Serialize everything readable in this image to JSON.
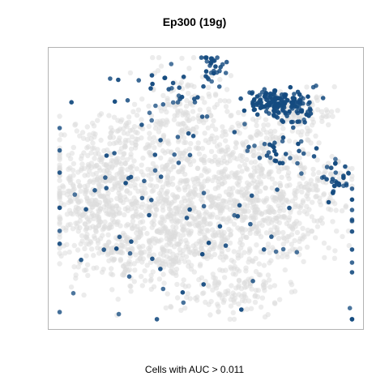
{
  "title": "Ep300 (19g)",
  "caption": "Cells with AUC > 0.011",
  "colors": {
    "background_cells": "#dcdcdc",
    "positive_cells": "#154b80",
    "panel_border": "#b3b3b3"
  },
  "chart_data": {
    "type": "scatter",
    "title": "Ep300 (19g)",
    "xlabel": "",
    "ylabel": "",
    "axes_visible": false,
    "grid": false,
    "legend": "none",
    "series": [
      {
        "name": "",
        "color": "#dcdcdc",
        "density_clusters": [
          {
            "cx": 0.18,
            "cy": 0.44,
            "sx": 0.09,
            "sy": 0.09,
            "n": 260
          },
          {
            "cx": 0.22,
            "cy": 0.6,
            "sx": 0.1,
            "sy": 0.1,
            "n": 240
          },
          {
            "cx": 0.3,
            "cy": 0.74,
            "sx": 0.12,
            "sy": 0.06,
            "n": 170
          },
          {
            "cx": 0.44,
            "cy": 0.48,
            "sx": 0.11,
            "sy": 0.11,
            "n": 300
          },
          {
            "cx": 0.5,
            "cy": 0.68,
            "sx": 0.12,
            "sy": 0.08,
            "n": 250
          },
          {
            "cx": 0.58,
            "cy": 0.87,
            "sx": 0.08,
            "sy": 0.05,
            "n": 120
          },
          {
            "cx": 0.62,
            "cy": 0.55,
            "sx": 0.12,
            "sy": 0.09,
            "n": 250
          },
          {
            "cx": 0.76,
            "cy": 0.58,
            "sx": 0.08,
            "sy": 0.1,
            "n": 160
          },
          {
            "cx": 0.45,
            "cy": 0.2,
            "sx": 0.08,
            "sy": 0.07,
            "n": 110
          },
          {
            "cx": 0.62,
            "cy": 0.33,
            "sx": 0.08,
            "sy": 0.07,
            "n": 110
          },
          {
            "cx": 0.8,
            "cy": 0.25,
            "sx": 0.06,
            "sy": 0.05,
            "n": 80
          },
          {
            "cx": 0.85,
            "cy": 0.47,
            "sx": 0.06,
            "sy": 0.06,
            "n": 70
          },
          {
            "cx": 0.3,
            "cy": 0.3,
            "sx": 0.07,
            "sy": 0.05,
            "n": 70
          },
          {
            "cx": 0.12,
            "cy": 0.58,
            "sx": 0.05,
            "sy": 0.07,
            "n": 80
          }
        ]
      },
      {
        "name": "",
        "color": "#154b80",
        "density_clusters": [
          {
            "cx": 0.72,
            "cy": 0.19,
            "sx": 0.045,
            "sy": 0.025,
            "n": 120
          },
          {
            "cx": 0.78,
            "cy": 0.22,
            "sx": 0.035,
            "sy": 0.025,
            "n": 50
          },
          {
            "cx": 0.52,
            "cy": 0.07,
            "sx": 0.025,
            "sy": 0.025,
            "n": 28
          },
          {
            "cx": 0.91,
            "cy": 0.47,
            "sx": 0.025,
            "sy": 0.045,
            "n": 30
          },
          {
            "cx": 0.72,
            "cy": 0.37,
            "sx": 0.05,
            "sy": 0.025,
            "n": 25
          },
          {
            "cx": 0.37,
            "cy": 0.17,
            "sx": 0.08,
            "sy": 0.05,
            "n": 30
          },
          {
            "cx": 0.45,
            "cy": 0.58,
            "sx": 0.32,
            "sy": 0.22,
            "n": 95
          }
        ]
      }
    ]
  }
}
